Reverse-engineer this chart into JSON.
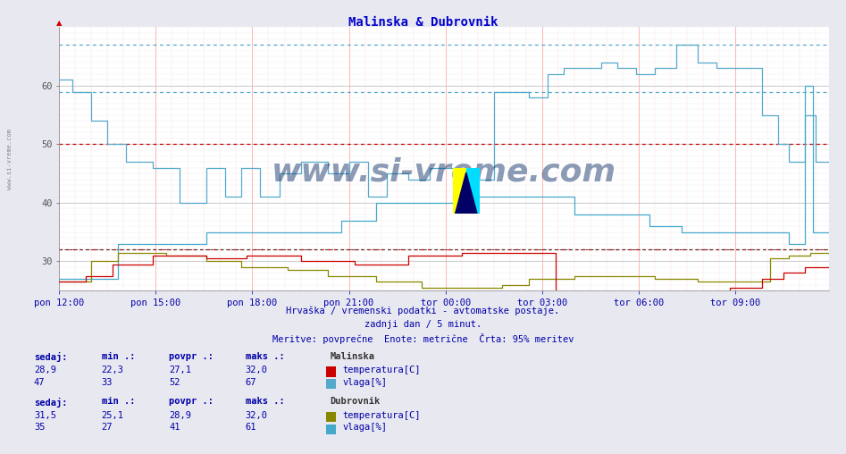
{
  "title": "Malinska & Dubrovnik",
  "title_color": "#0000cc",
  "bg_color": "#e8e8f0",
  "plot_bg": "#ffffff",
  "xlabel_ticks": [
    "pon 12:00",
    "pon 15:00",
    "pon 18:00",
    "pon 21:00",
    "tor 00:00",
    "tor 03:00",
    "tor 06:00",
    "tor 09:00"
  ],
  "ylim": [
    25,
    70
  ],
  "yticks": [
    30,
    40,
    50,
    60
  ],
  "hline_cyan_1": 67,
  "hline_cyan_2": 59,
  "hline_red_1": 50,
  "hline_red_2": 32,
  "hline_black_1": 32,
  "subtitle1": "Hrvaška / vremenski podatki - avtomatske postaje.",
  "subtitle2": "zadnji dan / 5 minut.",
  "subtitle3": "Meritve: povprečne  Enote: metrične  Črta: 95% meritev",
  "watermark": "www.si-vreme.com",
  "watermark_color": "#1a3a6e",
  "watermark_alpha": 0.5,
  "legend_color": "#0000aa",
  "malinska_label": "Malinska",
  "dubrovnik_label": "Dubrovnik",
  "col_headers": [
    "sedaj:",
    "min .:",
    "povpr .:",
    "maks .:"
  ],
  "malinska_temp_vals": [
    "28,9",
    "22,3",
    "27,1",
    "32,0"
  ],
  "malinska_hum_vals": [
    "47",
    "33",
    "52",
    "67"
  ],
  "dubrovnik_temp_vals": [
    "31,5",
    "25,1",
    "28,9",
    "32,0"
  ],
  "dubrovnik_hum_vals": [
    "35",
    "27",
    "41",
    "61"
  ],
  "temp_label": "temperatura[C]",
  "hum_label": "vlaga[%]",
  "malinska_temp_color": "#cc0000",
  "malinska_hum_color": "#55aacc",
  "dubrovnik_temp_color": "#888800",
  "dubrovnik_hum_color": "#44aacc",
  "grid_v_color": "#ffaaaa",
  "grid_h_color": "#ddcccc",
  "n_points": 288
}
